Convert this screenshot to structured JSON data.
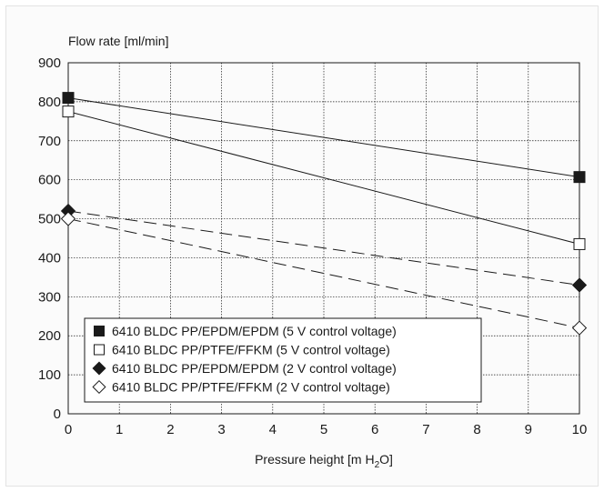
{
  "chart_data": {
    "type": "line",
    "ylabel": "Flow rate [ml/min]",
    "xlabel_parts": [
      "Pressure height [m H",
      "2",
      "O]"
    ],
    "xlim": [
      0,
      10
    ],
    "ylim": [
      0,
      900
    ],
    "xticks": [
      0,
      1,
      2,
      3,
      4,
      5,
      6,
      7,
      8,
      9,
      10
    ],
    "yticks": [
      0,
      100,
      200,
      300,
      400,
      500,
      600,
      700,
      800,
      900
    ],
    "grid": true,
    "legend_position": "bottom-left",
    "series": [
      {
        "name": "6410 BLDC PP/EPDM/EPDM (5 V control voltage)",
        "marker": "square-filled",
        "line_style": "solid",
        "x": [
          0,
          10
        ],
        "y": [
          810,
          607
        ]
      },
      {
        "name": "6410 BLDC PP/PTFE/FFKM (5 V control voltage)",
        "marker": "square-open",
        "line_style": "solid",
        "x": [
          0,
          10
        ],
        "y": [
          775,
          435
        ]
      },
      {
        "name": "6410 BLDC PP/EPDM/EPDM (2 V control voltage)",
        "marker": "diamond-filled",
        "line_style": "dashed",
        "x": [
          0,
          10
        ],
        "y": [
          520,
          330
        ]
      },
      {
        "name": "6410 BLDC PP/PTFE/FFKM (2 V control voltage)",
        "marker": "diamond-open",
        "line_style": "dashed",
        "x": [
          0,
          10
        ],
        "y": [
          500,
          220
        ]
      }
    ]
  }
}
